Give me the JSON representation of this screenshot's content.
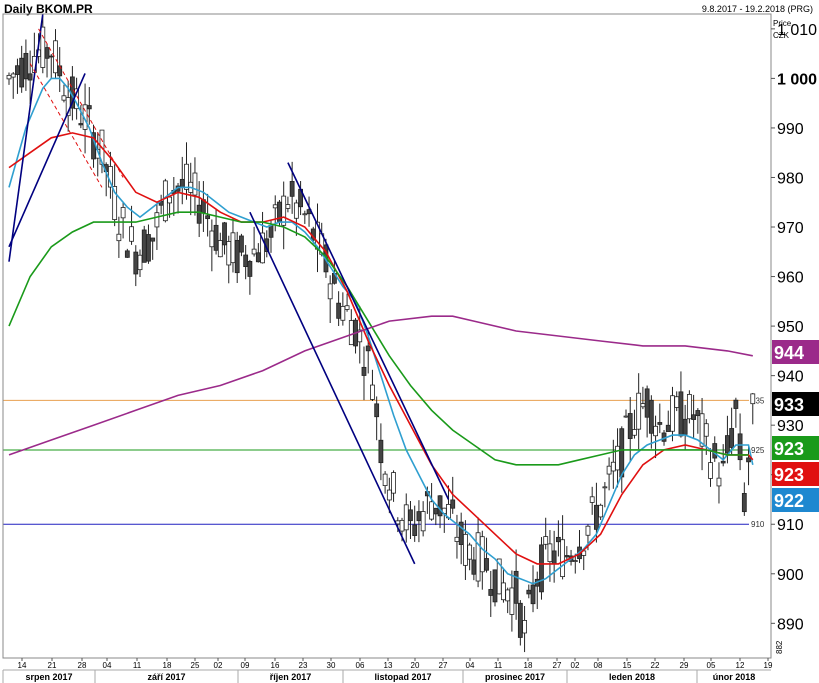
{
  "chart_data": {
    "type": "candlestick",
    "title": "Daily BKOM.PR",
    "date_range": "9.8.2017 - 19.2.2018 (PRG)",
    "y_axis": {
      "label": "Price",
      "unit": "CZK",
      "ylim": [
        883,
        1013
      ],
      "ticks": [
        "890",
        "900",
        "910",
        "920",
        "930",
        "940",
        "950",
        "960",
        "970",
        "980",
        "990",
        "1 000",
        "1 010"
      ]
    },
    "x_axis": {
      "day_labels": [
        "14",
        "21",
        "28",
        "04",
        "11",
        "18",
        "25",
        "02",
        "09",
        "16",
        "23",
        "30",
        "06",
        "13",
        "20",
        "27",
        "04",
        "11",
        "18",
        "27",
        "02",
        "08",
        "15",
        "22",
        "29",
        "05",
        "12",
        "19"
      ],
      "month_labels": [
        "srpen 2017",
        "září 2017",
        "říjen 2017",
        "listopad 2017",
        "prosinec 2017",
        "leden 2018",
        "únor 2018"
      ]
    },
    "horizontal_lines": [
      {
        "value": 935,
        "label": "935",
        "color": "#e8a050"
      },
      {
        "value": 925,
        "label": "925",
        "color": "#1a9a1a"
      },
      {
        "value": 910,
        "label": "910",
        "color": "#2020c0"
      }
    ],
    "price_tags": [
      {
        "value": 944,
        "label": "944",
        "color": "#9b2a8a"
      },
      {
        "value": 933,
        "label": "933",
        "color": "#000000"
      },
      {
        "value": 923,
        "label": "923",
        "color": "#1a9a1a"
      },
      {
        "value": 923,
        "label": "923",
        "color": "#e01010"
      },
      {
        "value": 922,
        "label": "922",
        "color": "#1e88d0"
      }
    ],
    "series": [
      {
        "name": "blue MA",
        "color": "#2f9fd0",
        "points": [
          [
            0,
            978
          ],
          [
            4,
            990
          ],
          [
            8,
            998
          ],
          [
            10,
            1000
          ],
          [
            12,
            1000
          ],
          [
            14,
            998
          ],
          [
            16,
            995
          ],
          [
            19,
            990
          ],
          [
            22,
            983
          ],
          [
            25,
            977
          ],
          [
            28,
            974
          ],
          [
            31,
            972
          ],
          [
            34,
            974
          ],
          [
            37,
            976
          ],
          [
            40,
            978
          ],
          [
            43,
            978
          ],
          [
            46,
            977
          ],
          [
            49,
            975
          ],
          [
            52,
            973
          ],
          [
            55,
            972
          ],
          [
            58,
            971
          ],
          [
            61,
            970
          ],
          [
            64,
            971
          ],
          [
            67,
            971
          ],
          [
            70,
            969
          ],
          [
            73,
            966
          ],
          [
            76,
            962
          ],
          [
            79,
            958
          ],
          [
            82,
            955
          ],
          [
            85,
            948
          ],
          [
            88,
            940
          ],
          [
            91,
            932
          ],
          [
            94,
            925
          ],
          [
            97,
            920
          ],
          [
            100,
            915
          ],
          [
            103,
            912
          ],
          [
            106,
            910
          ],
          [
            109,
            908
          ],
          [
            112,
            905
          ],
          [
            115,
            903
          ],
          [
            118,
            900
          ],
          [
            121,
            899
          ],
          [
            124,
            898
          ],
          [
            127,
            899
          ],
          [
            130,
            901
          ],
          [
            133,
            903
          ],
          [
            136,
            905
          ],
          [
            139,
            908
          ],
          [
            142,
            914
          ],
          [
            145,
            920
          ],
          [
            148,
            924
          ],
          [
            151,
            926
          ],
          [
            154,
            927
          ],
          [
            157,
            928
          ],
          [
            160,
            928
          ],
          [
            163,
            927
          ],
          [
            166,
            925
          ],
          [
            169,
            923
          ],
          [
            172,
            926
          ],
          [
            175,
            926
          ],
          [
            176,
            922
          ]
        ]
      },
      {
        "name": "red MA",
        "color": "#e01010",
        "points": [
          [
            0,
            982
          ],
          [
            5,
            985
          ],
          [
            10,
            988
          ],
          [
            15,
            989
          ],
          [
            20,
            988
          ],
          [
            25,
            983
          ],
          [
            30,
            977
          ],
          [
            35,
            975
          ],
          [
            40,
            977
          ],
          [
            45,
            976
          ],
          [
            50,
            973
          ],
          [
            55,
            971
          ],
          [
            60,
            971
          ],
          [
            65,
            972
          ],
          [
            70,
            970
          ],
          [
            75,
            965
          ],
          [
            80,
            957
          ],
          [
            85,
            947
          ],
          [
            90,
            938
          ],
          [
            95,
            930
          ],
          [
            100,
            922
          ],
          [
            105,
            916
          ],
          [
            110,
            912
          ],
          [
            115,
            908
          ],
          [
            120,
            904
          ],
          [
            125,
            902
          ],
          [
            130,
            902
          ],
          [
            135,
            904
          ],
          [
            140,
            908
          ],
          [
            145,
            916
          ],
          [
            150,
            922
          ],
          [
            155,
            925
          ],
          [
            160,
            926
          ],
          [
            165,
            925
          ],
          [
            170,
            924
          ],
          [
            175,
            924
          ],
          [
            176,
            923
          ]
        ]
      },
      {
        "name": "green MA",
        "color": "#1a9a1a",
        "points": [
          [
            0,
            950
          ],
          [
            5,
            960
          ],
          [
            10,
            966
          ],
          [
            15,
            969
          ],
          [
            20,
            971
          ],
          [
            25,
            971
          ],
          [
            30,
            971
          ],
          [
            35,
            972
          ],
          [
            40,
            973
          ],
          [
            45,
            973
          ],
          [
            50,
            972
          ],
          [
            55,
            971
          ],
          [
            60,
            971
          ],
          [
            65,
            970
          ],
          [
            70,
            968
          ],
          [
            75,
            964
          ],
          [
            80,
            958
          ],
          [
            85,
            951
          ],
          [
            90,
            944
          ],
          [
            95,
            938
          ],
          [
            100,
            933
          ],
          [
            105,
            929
          ],
          [
            110,
            926
          ],
          [
            115,
            923
          ],
          [
            120,
            922
          ],
          [
            125,
            922
          ],
          [
            130,
            922
          ],
          [
            135,
            923
          ],
          [
            140,
            924
          ],
          [
            145,
            925
          ],
          [
            150,
            925
          ],
          [
            155,
            925
          ],
          [
            160,
            925
          ],
          [
            165,
            925
          ],
          [
            170,
            924
          ],
          [
            175,
            924
          ]
        ]
      },
      {
        "name": "purple MA",
        "color": "#9b2a8a",
        "points": [
          [
            0,
            924
          ],
          [
            10,
            927
          ],
          [
            20,
            930
          ],
          [
            30,
            933
          ],
          [
            40,
            936
          ],
          [
            50,
            938
          ],
          [
            60,
            941
          ],
          [
            70,
            945
          ],
          [
            80,
            948
          ],
          [
            90,
            951
          ],
          [
            100,
            952
          ],
          [
            105,
            952
          ],
          [
            110,
            951
          ],
          [
            120,
            949
          ],
          [
            130,
            948
          ],
          [
            140,
            947
          ],
          [
            150,
            946
          ],
          [
            160,
            946
          ],
          [
            170,
            945
          ],
          [
            176,
            944
          ]
        ]
      }
    ],
    "trendlines": [
      {
        "color": "#000080",
        "style": "solid",
        "from": [
          0,
          963
        ],
        "to": [
          8,
          1013
        ]
      },
      {
        "color": "#000080",
        "style": "solid",
        "from": [
          0,
          966
        ],
        "to": [
          18,
          1001
        ]
      },
      {
        "color": "#000080",
        "style": "solid",
        "from": [
          57,
          973
        ],
        "to": [
          96,
          902
        ]
      },
      {
        "color": "#000080",
        "style": "solid",
        "from": [
          66,
          983
        ],
        "to": [
          104,
          915
        ]
      },
      {
        "color": "#e01010",
        "style": "dashed",
        "from": [
          7,
          1010
        ],
        "to": [
          27,
          980
        ]
      },
      {
        "color": "#e01010",
        "style": "dashed",
        "from": [
          5,
          1003
        ],
        "to": [
          22,
          978
        ]
      }
    ]
  },
  "axis_extra": {
    "tick_882": "882"
  }
}
